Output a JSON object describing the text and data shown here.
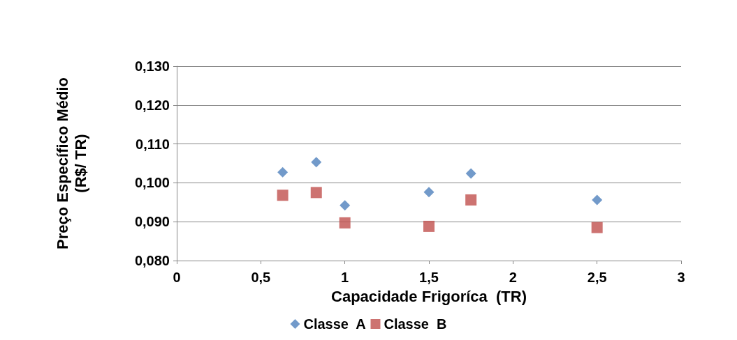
{
  "chart_data": {
    "type": "scatter",
    "xlabel": "Capacidade Frigoríca  (TR)",
    "ylabel": "Preço Específico Médio\n(R$/ TR)",
    "x": [
      0.63,
      0.83,
      1,
      1.5,
      1.75,
      2.5
    ],
    "series": [
      {
        "name": "Classe  A",
        "color": "#4f81bd",
        "marker": "diamond",
        "values": [
          0.1027,
          0.1053,
          0.0942,
          0.0976,
          0.1024,
          0.0956
        ]
      },
      {
        "name": "Classe  B",
        "color": "#c0504d",
        "marker": "square",
        "values": [
          0.0968,
          0.0975,
          0.0897,
          0.0888,
          0.0956,
          0.0885
        ]
      }
    ],
    "xlim": [
      0,
      3
    ],
    "xticks": [
      0,
      {
        "value": 0.5,
        "label": "0,5"
      },
      1,
      {
        "value": 1.5,
        "label": "1,5"
      },
      2,
      {
        "value": 2.5,
        "label": "2,5"
      },
      3
    ],
    "ylim": [
      0.08,
      0.13
    ],
    "yticks": [
      {
        "value": 0.08,
        "label": "0,080"
      },
      {
        "value": 0.09,
        "label": "0,090"
      },
      {
        "value": 0.1,
        "label": "0,100"
      },
      {
        "value": 0.11,
        "label": "0,110"
      },
      {
        "value": 0.12,
        "label": "0,120"
      },
      {
        "value": 0.13,
        "label": "0,130"
      }
    ],
    "grid": "y",
    "legend": "bottom"
  }
}
